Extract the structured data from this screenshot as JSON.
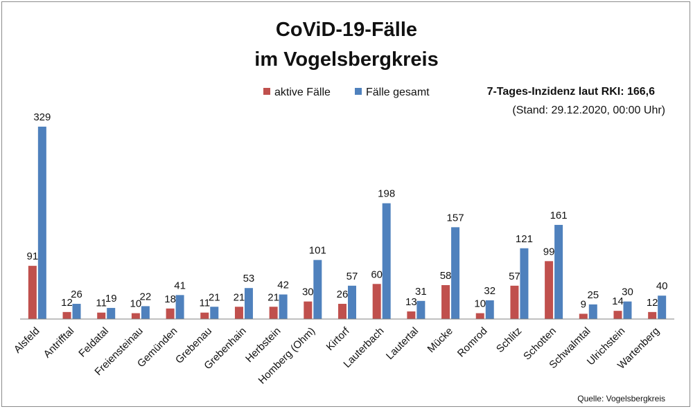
{
  "title_line1": "CoViD-19-Fälle",
  "title_line2": "im Vogelsbergkreis",
  "incidence": "7-Tages-Inzidenz laut RKI: 166,6",
  "stand": "(Stand: 29.12.2020, 00:00 Uhr)",
  "source": "Quelle: Vogelsbergkreis",
  "colors": {
    "active": "#c0504d",
    "total": "#4f81bd"
  },
  "chart_data": {
    "type": "bar",
    "title": "CoViD-19-Fälle im Vogelsbergkreis",
    "xlabel": "",
    "ylabel": "",
    "ylim": [
      0,
      350
    ],
    "grid": false,
    "legend_position": "top-center",
    "categories": [
      "Alsfeld",
      "Antrifftal",
      "Feldatal",
      "Freiensteinau",
      "Gemünden",
      "Grebenau",
      "Grebenhain",
      "Herbstein",
      "Homberg (Ohm)",
      "Kirtorf",
      "Lauterbach",
      "Lautertal",
      "Mücke",
      "Romrod",
      "Schlitz",
      "Schotten",
      "Schwalmtal",
      "Ulrichstein",
      "Wartenberg"
    ],
    "series": [
      {
        "name": "aktive Fälle",
        "values": [
          91,
          12,
          11,
          10,
          18,
          11,
          21,
          21,
          30,
          26,
          60,
          13,
          58,
          10,
          57,
          99,
          9,
          14,
          12
        ]
      },
      {
        "name": "Fälle gesamt",
        "values": [
          329,
          26,
          19,
          22,
          41,
          21,
          53,
          42,
          101,
          57,
          198,
          31,
          157,
          32,
          121,
          161,
          25,
          30,
          40
        ]
      }
    ]
  }
}
